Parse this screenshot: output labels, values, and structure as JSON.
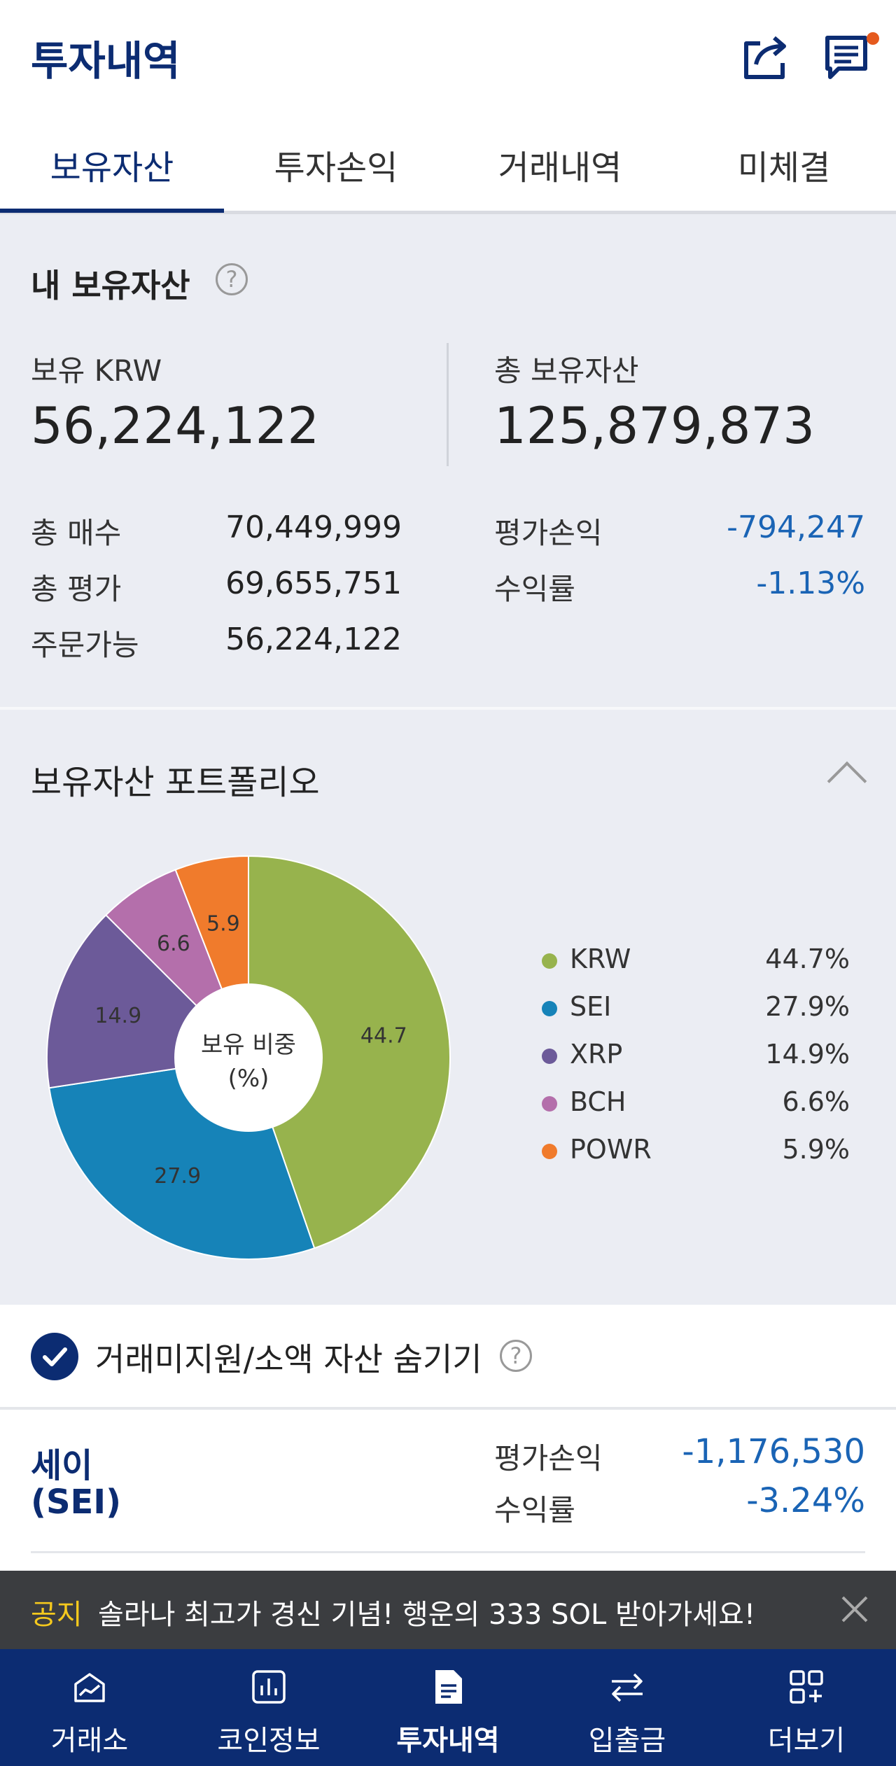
{
  "header": {
    "title": "투자내역",
    "share_icon": "share-icon",
    "notice_icon": "message-icon"
  },
  "tabs": [
    {
      "label": "보유자산",
      "active": true
    },
    {
      "label": "투자손익",
      "active": false
    },
    {
      "label": "거래내역",
      "active": false
    },
    {
      "label": "미체결",
      "active": false
    }
  ],
  "summary": {
    "title": "내 보유자산",
    "help": "?",
    "krw_label": "보유 KRW",
    "krw_value": "56,224,122",
    "total_label": "총 보유자산",
    "total_value": "125,879,873",
    "rows_left": [
      {
        "label": "총 매수",
        "value": "70,449,999"
      },
      {
        "label": "총 평가",
        "value": "69,655,751"
      },
      {
        "label": "주문가능",
        "value": "56,224,122"
      }
    ],
    "rows_right": [
      {
        "label": "평가손익",
        "value": "-794,247"
      },
      {
        "label": "수익률",
        "value": "-1.13%"
      }
    ]
  },
  "portfolio": {
    "title": "보유자산 포트폴리오",
    "center_label_1": "보유 비중",
    "center_label_2": "(%)",
    "legend": [
      {
        "name": "KRW",
        "pct": "44.7%"
      },
      {
        "name": "SEI",
        "pct": "27.9%"
      },
      {
        "name": "XRP",
        "pct": "14.9%"
      },
      {
        "name": "BCH",
        "pct": "6.6%"
      },
      {
        "name": "POWR",
        "pct": "5.9%"
      }
    ]
  },
  "chart_data": {
    "type": "pie",
    "categories": [
      "KRW",
      "SEI",
      "XRP",
      "BCH",
      "POWR"
    ],
    "values": [
      44.7,
      27.9,
      14.9,
      6.6,
      5.9
    ],
    "data_labels": [
      "44.7",
      "27.9",
      "14.9",
      "6.6",
      "5.9"
    ],
    "colors": [
      "#97b34d",
      "#1683b8",
      "#6c5a99",
      "#b46fab",
      "#f07b2c"
    ],
    "donut": true,
    "legend": "right"
  },
  "filter": {
    "label": "거래미지원/소액 자산 숨기기",
    "help": "?",
    "checked": true
  },
  "holding": {
    "name_line1": "세이",
    "name_line2": "(SEI)",
    "pnl_label": "평가손익",
    "pnl_value": "-1,176,530",
    "rate_label": "수익률",
    "rate_value": "-3.24%"
  },
  "notice": {
    "tag": "공지",
    "text": "솔라나 최고가 경신 기념! 행운의 333 SOL 받아가세요!",
    "close_icon": "close-icon"
  },
  "nav": [
    {
      "label": "거래소",
      "icon": "exchange-chart-icon",
      "active": false
    },
    {
      "label": "코인정보",
      "icon": "coin-info-icon",
      "active": false
    },
    {
      "label": "투자내역",
      "icon": "document-icon",
      "active": true
    },
    {
      "label": "입출금",
      "icon": "transfer-icon",
      "active": false
    },
    {
      "label": "더보기",
      "icon": "more-grid-icon",
      "active": false
    }
  ],
  "colors": {
    "brand": "#0c2c72",
    "negative": "#1a64b5",
    "notice_tag": "#f5c91d",
    "notification_dot": "#e55a1e"
  }
}
